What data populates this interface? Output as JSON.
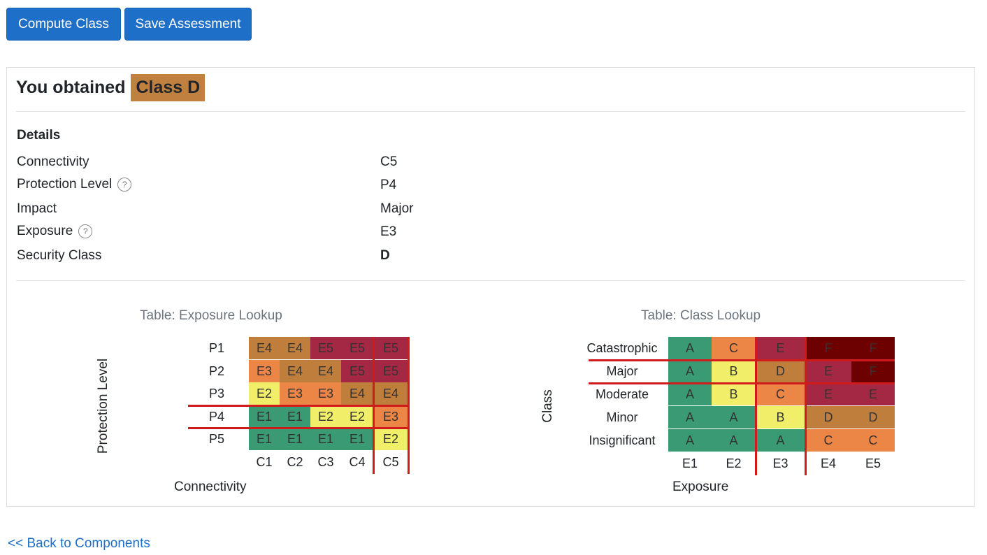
{
  "buttons": {
    "compute": "Compute Class",
    "save": "Save Assessment"
  },
  "result": {
    "prefix": "You obtained",
    "badge": "Class D",
    "badge_color": "#c08040"
  },
  "details": {
    "heading": "Details",
    "rows": [
      {
        "label": "Connectivity",
        "value": "C5",
        "help": false
      },
      {
        "label": "Protection Level",
        "value": "P4",
        "help": true
      },
      {
        "label": "Impact",
        "value": "Major",
        "help": false
      },
      {
        "label": "Exposure",
        "value": "E3",
        "help": true
      },
      {
        "label": "Security Class",
        "value": "D",
        "help": false,
        "bold": true
      }
    ],
    "help_glyph": "?"
  },
  "exposure_table": {
    "caption": "Table: Exposure Lookup",
    "y_title": "Protection Level",
    "x_title": "Connectivity",
    "rows": [
      "P1",
      "P2",
      "P3",
      "P4",
      "P5"
    ],
    "cols": [
      "C1",
      "C2",
      "C3",
      "C4",
      "C5"
    ],
    "cells": [
      [
        "E4",
        "E4",
        "E5",
        "E5",
        "E5"
      ],
      [
        "E3",
        "E4",
        "E4",
        "E5",
        "E5"
      ],
      [
        "E2",
        "E3",
        "E3",
        "E4",
        "E4"
      ],
      [
        "E1",
        "E1",
        "E2",
        "E2",
        "E3"
      ],
      [
        "E1",
        "E1",
        "E1",
        "E1",
        "E2"
      ]
    ],
    "selected_row": "P4",
    "selected_col": "C5"
  },
  "class_table": {
    "caption": "Table: Class Lookup",
    "y_title": "Class",
    "x_title": "Exposure",
    "rows": [
      "Catastrophic",
      "Major",
      "Moderate",
      "Minor",
      "Insignificant"
    ],
    "cols": [
      "E1",
      "E2",
      "E3",
      "E4",
      "E5"
    ],
    "cells": [
      [
        "A",
        "C",
        "E",
        "F",
        "F"
      ],
      [
        "A",
        "B",
        "D",
        "E",
        "F"
      ],
      [
        "A",
        "B",
        "C",
        "E",
        "E"
      ],
      [
        "A",
        "A",
        "B",
        "D",
        "D"
      ],
      [
        "A",
        "A",
        "A",
        "C",
        "C"
      ]
    ],
    "selected_row": "Major",
    "selected_col": "E3"
  },
  "colors": {
    "E1": "#3a9a74",
    "E2": "#f1ef6a",
    "E3": "#ec8647",
    "E4": "#c07e3c",
    "E5": "#a42843",
    "A": "#3a9a74",
    "B": "#f1ef6a",
    "C": "#ec8647",
    "D": "#c07e3c",
    "E": "#a42843",
    "F": "#6d0000",
    "highlight": "#d11a1a"
  },
  "back_link": "<< Back to Components"
}
